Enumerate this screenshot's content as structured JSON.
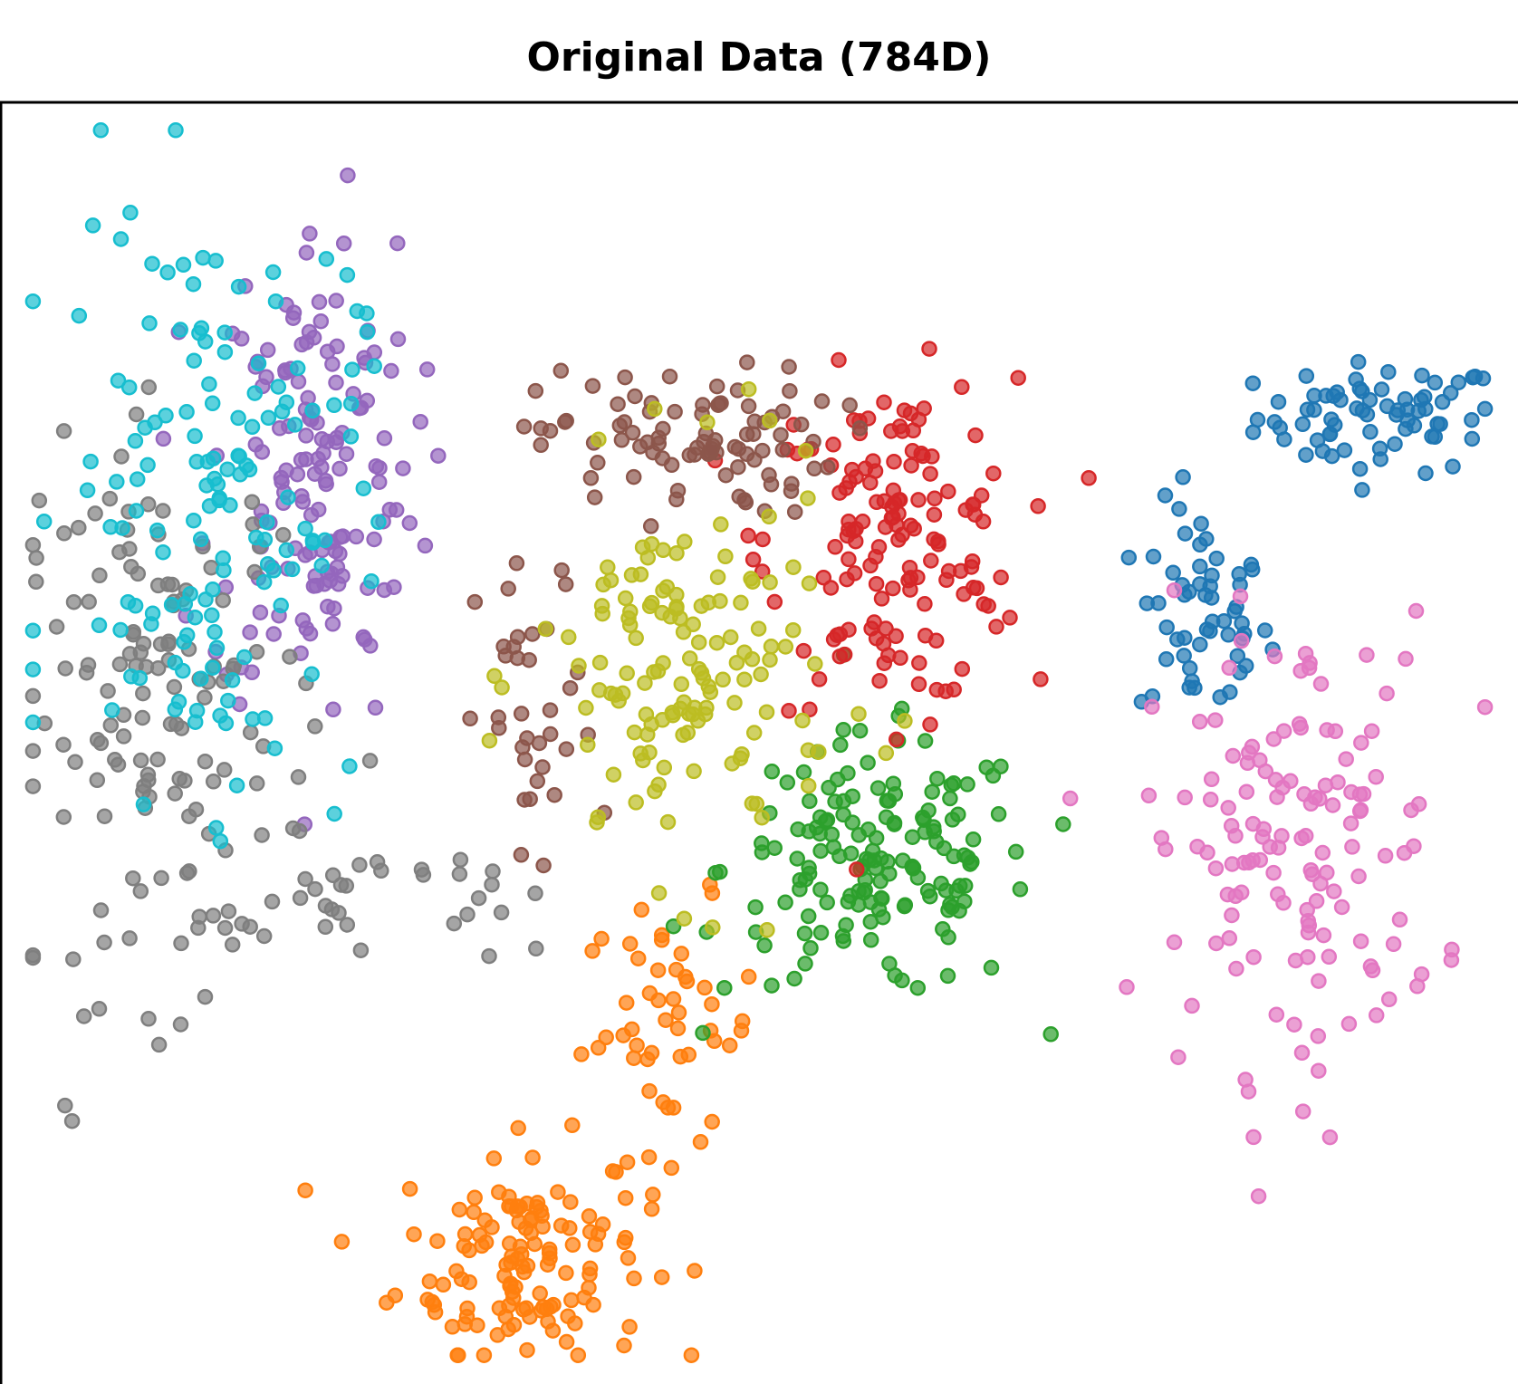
{
  "chart_data": {
    "type": "scatter",
    "title": "Original Data (784D)",
    "xlabel": "",
    "ylabel": "",
    "xlim": [
      0,
      100
    ],
    "ylim": [
      0,
      100
    ],
    "axes_visible": false,
    "grid": false,
    "legend": "none",
    "series": [
      {
        "color": "#1f77b4",
        "clusters": [
          {
            "x": 92,
            "y": 76,
            "sx": 4.2,
            "sy": 2.2,
            "n": 70
          },
          {
            "x": 80,
            "y": 60,
            "sx": 2.2,
            "sy": 4.5,
            "n": 55
          }
        ]
      },
      {
        "color": "#ff7f0e",
        "clusters": [
          {
            "x": 34,
            "y": 9,
            "sx": 4.2,
            "sy": 4.5,
            "n": 130
          },
          {
            "x": 44,
            "y": 27,
            "sx": 3.0,
            "sy": 5.0,
            "n": 50
          }
        ]
      },
      {
        "color": "#2ca02c",
        "clusters": [
          {
            "x": 58,
            "y": 40,
            "sx": 5.2,
            "sy": 5.2,
            "n": 160
          }
        ]
      },
      {
        "color": "#d62728",
        "clusters": [
          {
            "x": 59,
            "y": 66,
            "sx": 4.2,
            "sy": 6.5,
            "n": 150
          }
        ]
      },
      {
        "color": "#9467bd",
        "clusters": [
          {
            "x": 20,
            "y": 72,
            "sx": 3.5,
            "sy": 10.0,
            "n": 150
          }
        ]
      },
      {
        "color": "#8c564b",
        "clusters": [
          {
            "x": 45,
            "y": 74,
            "sx": 5.0,
            "sy": 3.0,
            "n": 90
          },
          {
            "x": 35,
            "y": 51,
            "sx": 2.0,
            "sy": 7.0,
            "n": 35
          }
        ]
      },
      {
        "color": "#e377c2",
        "clusters": [
          {
            "x": 86,
            "y": 42,
            "sx": 5.0,
            "sy": 9.0,
            "n": 140
          }
        ]
      },
      {
        "color": "#7f7f7f",
        "clusters": [
          {
            "x": 10,
            "y": 52,
            "sx": 5.0,
            "sy": 11.0,
            "n": 140
          },
          {
            "x": 23,
            "y": 37,
            "sx": 6.0,
            "sy": 2.5,
            "n": 35
          }
        ]
      },
      {
        "color": "#bcbd22",
        "clusters": [
          {
            "x": 45,
            "y": 55,
            "sx": 5.0,
            "sy": 8.0,
            "n": 140
          }
        ]
      },
      {
        "color": "#17becf",
        "clusters": [
          {
            "x": 13,
            "y": 70,
            "sx": 5.0,
            "sy": 12.0,
            "n": 150
          }
        ]
      }
    ]
  }
}
